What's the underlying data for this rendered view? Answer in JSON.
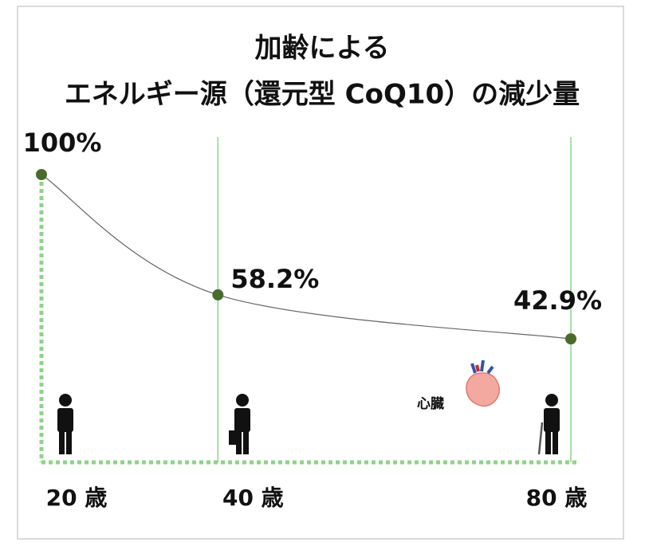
{
  "chart_data": {
    "type": "line",
    "title": [
      "加齢による",
      "エネルギー源（還元型 CoQ10）の減少量"
    ],
    "x": [
      20,
      40,
      80
    ],
    "values": [
      100,
      58.2,
      42.9
    ],
    "value_labels": [
      "100%",
      "58.2%",
      "42.9%"
    ],
    "xlim": [
      20,
      80
    ],
    "xticks": [
      {
        "value": 20,
        "label": "20 歳"
      },
      {
        "value": 40,
        "label": "40 歳"
      },
      {
        "value": 80,
        "label": "80 歳"
      }
    ],
    "ylim": [
      0,
      100
    ],
    "color": "#666666",
    "marker_color": "#4a6b2e",
    "grid_color": "#8fd38a",
    "annotation": "心臓"
  }
}
